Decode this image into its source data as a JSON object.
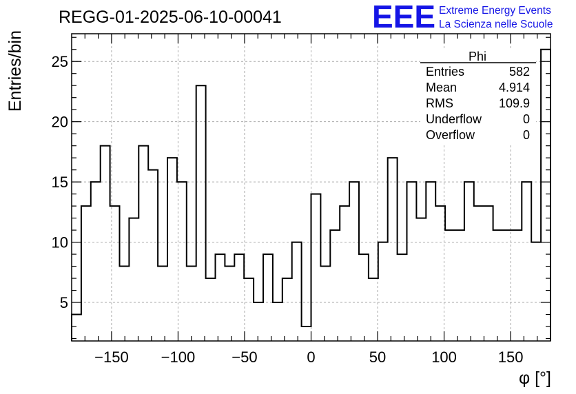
{
  "header": {
    "run_title": "REGG-01-2025-06-10-00041",
    "logo_mark": "EEE",
    "logo_line1": "Extreme Energy Events",
    "logo_line2": "La Scienza nelle Scuole",
    "logo_color": "#1515e6"
  },
  "stats_box": {
    "title": "Phi",
    "rows": [
      {
        "label": "Entries",
        "value": "582"
      },
      {
        "label": "Mean",
        "value": "4.914"
      },
      {
        "label": "RMS",
        "value": "109.9"
      },
      {
        "label": "Underflow",
        "value": "0"
      },
      {
        "label": "Overflow",
        "value": "0"
      }
    ]
  },
  "chart_data": {
    "type": "bar",
    "histogram_style": "step",
    "title": "REGG-01-2025-06-10-00041",
    "xlabel": "φ [°]",
    "ylabel": "Entries/bin",
    "xlim": [
      -180,
      180
    ],
    "ylim": [
      1.8,
      27.3
    ],
    "bin_width": 7.2,
    "x_ticks": [
      -150,
      -100,
      -50,
      0,
      50,
      100,
      150
    ],
    "x_tick_labels": [
      "−150",
      "−100",
      "−50",
      "0",
      "50",
      "100",
      "150"
    ],
    "y_ticks": [
      5,
      10,
      15,
      20,
      25
    ],
    "y_tick_labels": [
      "5",
      "10",
      "15",
      "20",
      "25"
    ],
    "grid": true,
    "legend": "none",
    "line_color": "#000000",
    "bin_lower_edges": [
      -180,
      -172.8,
      -165.6,
      -158.4,
      -151.2,
      -144,
      -136.8,
      -129.6,
      -122.4,
      -115.2,
      -108,
      -100.8,
      -93.6,
      -86.4,
      -79.2,
      -72,
      -64.8,
      -57.6,
      -50.4,
      -43.2,
      -36,
      -28.8,
      -21.6,
      -14.4,
      -7.2,
      0,
      7.2,
      14.4,
      21.6,
      28.8,
      36,
      43.2,
      50.4,
      57.6,
      64.8,
      72,
      79.2,
      86.4,
      93.6,
      100.8,
      108,
      115.2,
      122.4,
      129.6,
      136.8,
      144,
      151.2,
      158.4,
      165.6,
      172.8
    ],
    "values": [
      4,
      13,
      15,
      18,
      13,
      8,
      12,
      18,
      16,
      8,
      17,
      15,
      8,
      23,
      7,
      9,
      8,
      9,
      7,
      5,
      9,
      5,
      7,
      10,
      3,
      14,
      8,
      11,
      13,
      15,
      9,
      7,
      10,
      17,
      9,
      15,
      12,
      15,
      13,
      11,
      11,
      15,
      13,
      13,
      11,
      11,
      11,
      15,
      10,
      26
    ]
  }
}
